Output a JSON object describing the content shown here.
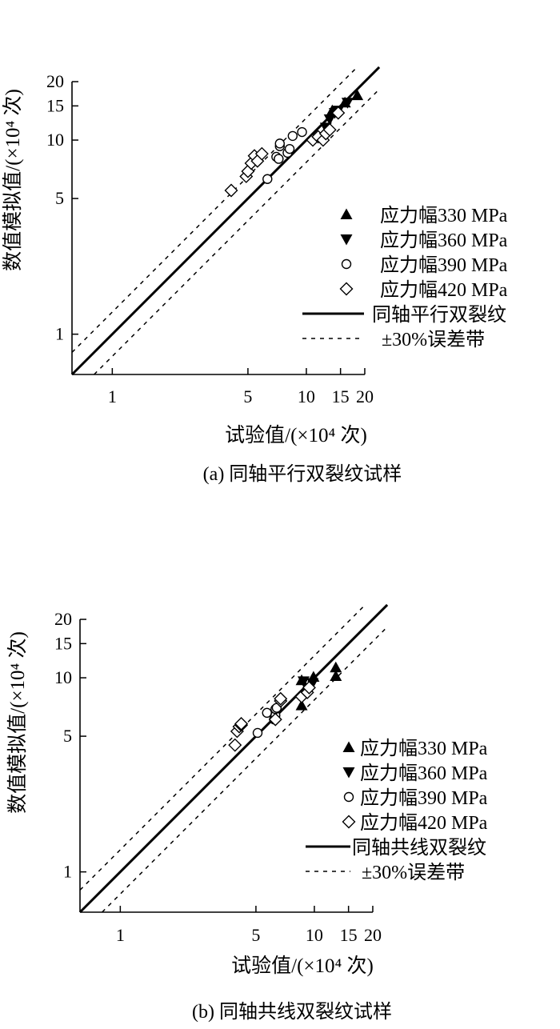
{
  "chart_data": [
    {
      "type": "scatter",
      "caption": "(a) 同轴平行双裂纹试样",
      "xlabel": "试验值/(×10⁴ 次)",
      "ylabel": "数值模拟值/(×10⁴ 次)",
      "xscale": "log",
      "yscale": "log",
      "xlim": [
        0.62,
        22
      ],
      "ylim": [
        0.62,
        22
      ],
      "xticks": [
        1,
        5,
        10,
        15,
        20
      ],
      "yticks": [
        1,
        5,
        10,
        15,
        20
      ],
      "legend_position": "lower-right",
      "series": [
        {
          "name": "应力幅330 MPa",
          "marker": "triangle-up",
          "points": [
            [
              13.6,
              14.2
            ],
            [
              15.8,
              15.6
            ],
            [
              18.3,
              17.0
            ]
          ]
        },
        {
          "name": "应力幅360 MPa",
          "marker": "triangle-down",
          "points": [
            [
              12.6,
              11.6
            ],
            [
              13.2,
              12.8
            ],
            [
              14.0,
              13.8
            ],
            [
              14.6,
              14.2
            ],
            [
              16.3,
              15.6
            ]
          ]
        },
        {
          "name": "应力幅390 MPa",
          "marker": "circle",
          "points": [
            [
              6.3,
              6.3
            ],
            [
              7.0,
              8.2
            ],
            [
              7.2,
              8.0
            ],
            [
              7.3,
              9.3
            ],
            [
              7.3,
              9.6
            ],
            [
              8.0,
              8.6
            ],
            [
              8.2,
              9.0
            ],
            [
              8.5,
              10.5
            ],
            [
              9.5,
              11.0
            ]
          ]
        },
        {
          "name": "应力幅420 MPa",
          "marker": "diamond",
          "points": [
            [
              4.1,
              5.5
            ],
            [
              4.9,
              6.5
            ],
            [
              5.0,
              6.9
            ],
            [
              5.2,
              7.6
            ],
            [
              5.4,
              8.3
            ],
            [
              5.6,
              7.8
            ],
            [
              5.9,
              8.5
            ],
            [
              10.8,
              10.0
            ],
            [
              11.5,
              10.4
            ],
            [
              12.2,
              10.0
            ],
            [
              12.6,
              10.8
            ],
            [
              13.2,
              11.3
            ],
            [
              14.6,
              13.8
            ]
          ]
        }
      ],
      "reference_lines": [
        {
          "name": "同轴平行双裂纹",
          "style": "solid",
          "equation": "y = x"
        },
        {
          "name": "±30%误差带",
          "style": "dashed",
          "equation": "y = 1.3x, y = x/1.3"
        }
      ]
    },
    {
      "type": "scatter",
      "caption": "(b) 同轴共线双裂纹试样",
      "xlabel": "试验值/(×10⁴ 次)",
      "ylabel": "数值模拟值/(×10⁴ 次)",
      "xscale": "log",
      "yscale": "log",
      "xlim": [
        0.62,
        22
      ],
      "ylim": [
        0.62,
        22
      ],
      "xticks": [
        1,
        5,
        10,
        15,
        20
      ],
      "yticks": [
        1,
        5,
        10,
        15,
        20
      ],
      "legend_position": "lower-right",
      "series": [
        {
          "name": "应力幅330 MPa",
          "marker": "triangle-up",
          "points": [
            [
              8.6,
              7.2
            ],
            [
              8.6,
              9.7
            ],
            [
              9.9,
              10.1
            ],
            [
              12.9,
              10.2
            ],
            [
              12.9,
              11.3
            ]
          ]
        },
        {
          "name": "应力幅360 MPa",
          "marker": "triangle-down",
          "points": [
            [
              8.8,
              9.6
            ],
            [
              9.8,
              9.4
            ]
          ]
        },
        {
          "name": "应力幅390 MPa",
          "marker": "circle",
          "points": [
            [
              5.1,
              5.2
            ],
            [
              5.7,
              6.6
            ],
            [
              6.2,
              6.1
            ],
            [
              6.3,
              6.4
            ],
            [
              6.3,
              6.9
            ],
            [
              6.4,
              7.0
            ]
          ]
        },
        {
          "name": "应力幅420 MPa",
          "marker": "diamond",
          "points": [
            [
              3.9,
              4.5
            ],
            [
              4.0,
              5.3
            ],
            [
              4.1,
              5.6
            ],
            [
              4.2,
              5.7
            ],
            [
              4.2,
              5.8
            ],
            [
              6.3,
              6.1
            ],
            [
              6.7,
              7.6
            ],
            [
              6.7,
              7.8
            ],
            [
              8.6,
              8.0
            ],
            [
              9.2,
              8.4
            ],
            [
              9.4,
              8.9
            ]
          ]
        }
      ],
      "reference_lines": [
        {
          "name": "同轴共线双裂纹",
          "style": "solid",
          "equation": "y = x"
        },
        {
          "name": "±30%误差带",
          "style": "dashed",
          "equation": "y = 1.3x, y = x/1.3"
        }
      ]
    }
  ]
}
